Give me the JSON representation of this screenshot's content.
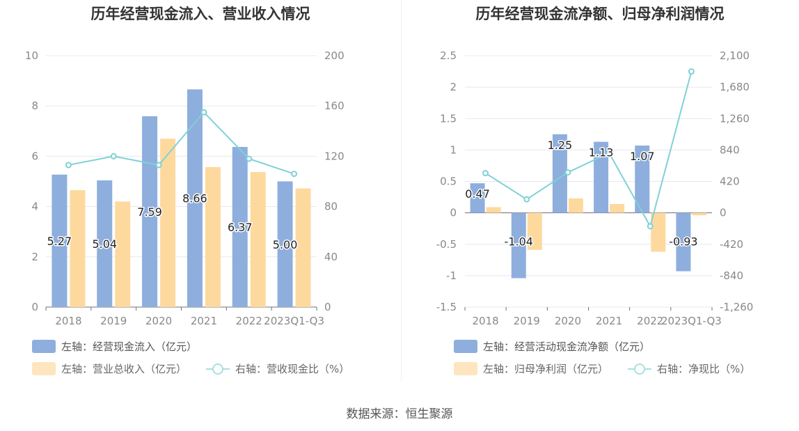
{
  "source": "数据来源：恒生聚源",
  "colors": {
    "bar_primary": "#8eaedd",
    "bar_secondary": "#fed99e",
    "line": "#7fd1d6",
    "grid": "#e6e8f0",
    "axis": "#888888"
  },
  "chart_data": [
    {
      "type": "bar",
      "title": "历年经营现金流入、营业收入情况",
      "categories": [
        "2018",
        "2019",
        "2020",
        "2021",
        "2022",
        "2023Q1-Q3"
      ],
      "series": [
        {
          "name": "左轴：经营现金流入（亿元）",
          "axis": "left",
          "kind": "bar",
          "values": [
            5.27,
            5.04,
            7.59,
            8.66,
            6.37,
            5.0
          ],
          "labels": [
            "5.27",
            "5.04",
            "7.59",
            "8.66",
            "6.37",
            "5.00"
          ]
        },
        {
          "name": "左轴：营业总收入（亿元）",
          "axis": "left",
          "kind": "bar",
          "values": [
            4.65,
            4.2,
            6.7,
            5.57,
            5.37,
            4.72
          ]
        },
        {
          "name": "右轴：营收现金比（%）",
          "axis": "right",
          "kind": "line",
          "values": [
            113,
            120,
            113,
            155,
            118,
            106
          ]
        }
      ],
      "y_left": {
        "min": 0,
        "max": 10,
        "ticks": [
          "0",
          "2",
          "4",
          "6",
          "8",
          "10"
        ]
      },
      "y_right": {
        "min": 0,
        "max": 200,
        "ticks": [
          "0",
          "40",
          "80",
          "120",
          "160",
          "200"
        ]
      },
      "legend": [
        "左轴：经营现金流入（亿元）",
        "左轴：营业总收入（亿元）",
        "右轴：营收现金比（%）"
      ]
    },
    {
      "type": "bar",
      "title": "历年经营现金流净额、归母净利润情况",
      "categories": [
        "2018",
        "2019",
        "2020",
        "2021",
        "2022",
        "2023Q1-Q3"
      ],
      "series": [
        {
          "name": "左轴：经营活动现金流净额（亿元）",
          "axis": "left",
          "kind": "bar",
          "values": [
            0.47,
            -1.04,
            1.25,
            1.13,
            1.07,
            -0.93
          ],
          "labels": [
            "0.47",
            "-1.04",
            "1.25",
            "1.13",
            "1.07",
            "-0.93"
          ]
        },
        {
          "name": "左轴：归母净利润（亿元）",
          "axis": "left",
          "kind": "bar",
          "values": [
            0.09,
            -0.59,
            0.23,
            0.14,
            -0.62,
            -0.04
          ]
        },
        {
          "name": "右轴：净现比（%）",
          "axis": "right",
          "kind": "line",
          "values": [
            530,
            180,
            540,
            800,
            -180,
            1890
          ]
        }
      ],
      "y_left": {
        "min": -1.5,
        "max": 2.5,
        "ticks": [
          "-1.5",
          "-1",
          "-0.5",
          "0",
          "0.5",
          "1",
          "1.5",
          "2",
          "2.5"
        ]
      },
      "y_right": {
        "min": -1260,
        "max": 2100,
        "ticks": [
          "-1,260",
          "-840",
          "-420",
          "0",
          "420",
          "840",
          "1,260",
          "1,680",
          "2,100"
        ]
      },
      "legend": [
        "左轴：经营活动现金流净额（亿元）",
        "左轴：归母净利润（亿元）",
        "右轴：净现比（%）"
      ]
    }
  ]
}
